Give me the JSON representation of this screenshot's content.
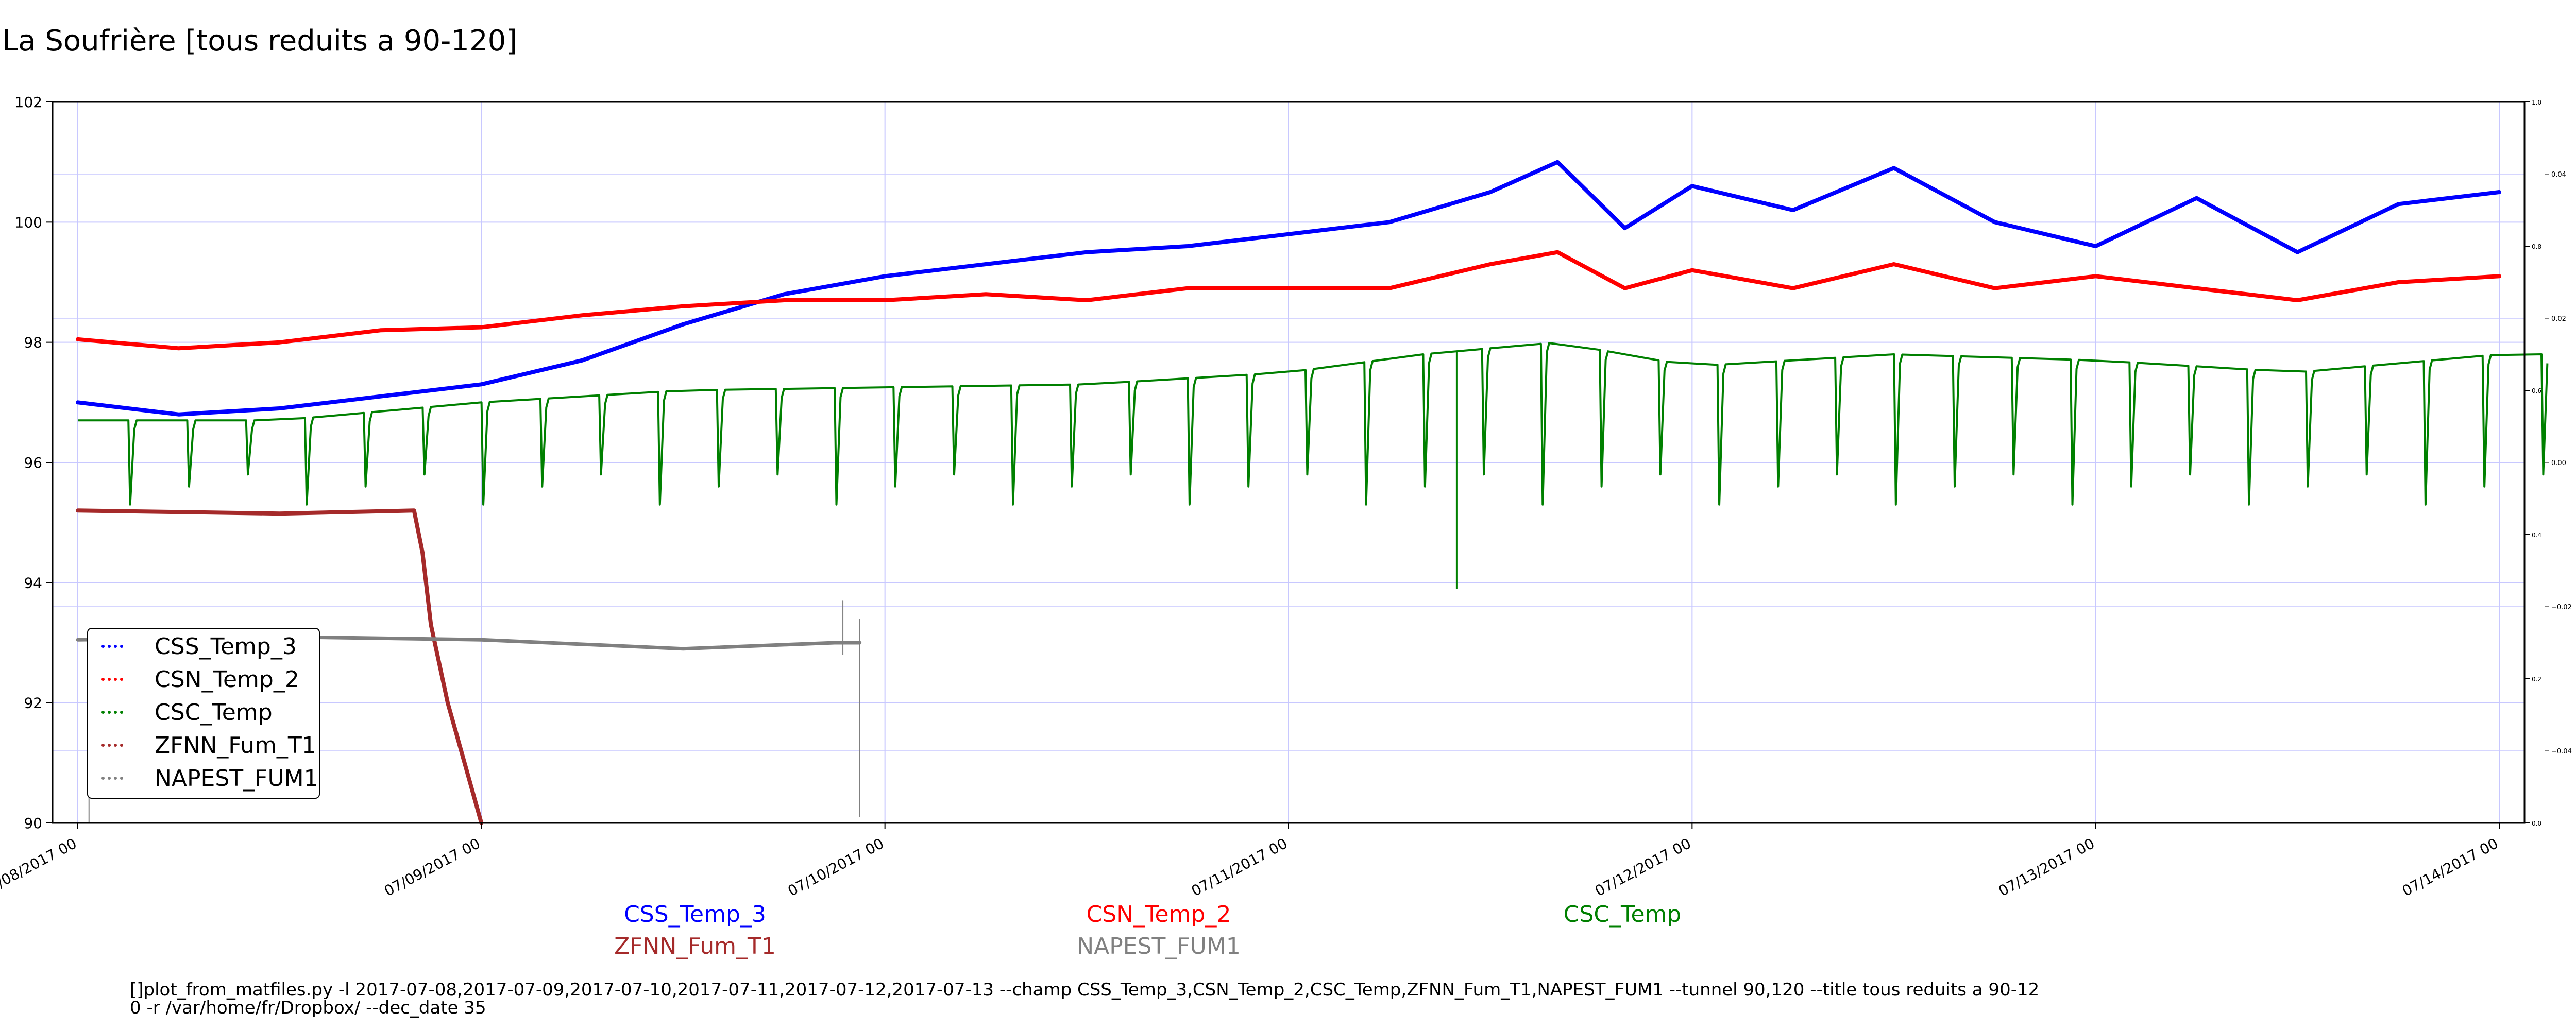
{
  "title": "La Soufrière [tous reduits a 90-120]",
  "chart_data": {
    "type": "scatter",
    "x_axis": {
      "type": "date",
      "range": [
        "2017-07-07 22:30",
        "2017-07-14 01:30"
      ],
      "tick_dates": [
        "2017-07-08 00:00",
        "2017-07-09 00:00",
        "2017-07-10 00:00",
        "2017-07-11 00:00",
        "2017-07-12 00:00",
        "2017-07-13 00:00",
        "2017-07-14 00:00"
      ],
      "tick_labels": [
        "07/08/2017 00",
        "07/09/2017 00",
        "07/10/2017 00",
        "07/11/2017 00",
        "07/12/2017 00",
        "07/13/2017 00",
        "07/14/2017 00"
      ]
    },
    "y_axis": {
      "range": [
        90,
        102
      ],
      "tick_labels": [
        "90",
        "92",
        "94",
        "96",
        "98",
        "100",
        "102"
      ]
    },
    "right_axis_outer": {
      "range": [
        0.0,
        1.0
      ],
      "tick_labels": [
        "0.0",
        "0.2",
        "0.4",
        "0.6",
        "0.8",
        "1.0"
      ]
    },
    "right_axis_inner": {
      "tick_values": [
        -0.04,
        -0.02,
        0.0,
        0.02,
        0.04
      ],
      "tick_labels": [
        "−0.04",
        "−0.02",
        "0.00",
        "0.02",
        "0.04"
      ]
    },
    "grid": true,
    "legend": {
      "position": "lower-left",
      "entries": [
        "CSS_Temp_3",
        "CSN_Temp_2",
        "CSC_Temp",
        "ZFNN_Fum_T1",
        "NAPEST_FUM1"
      ]
    },
    "series": [
      {
        "name": "CSS_Temp_3",
        "color": "#0000ff",
        "points": [
          [
            "2017-07-08 00:00",
            97.0
          ],
          [
            "2017-07-08 06:00",
            96.8
          ],
          [
            "2017-07-08 12:00",
            96.9
          ],
          [
            "2017-07-08 18:00",
            97.1
          ],
          [
            "2017-07-09 00:00",
            97.3
          ],
          [
            "2017-07-09 06:00",
            97.7
          ],
          [
            "2017-07-09 12:00",
            98.3
          ],
          [
            "2017-07-09 18:00",
            98.8
          ],
          [
            "2017-07-10 00:00",
            99.1
          ],
          [
            "2017-07-10 06:00",
            99.3
          ],
          [
            "2017-07-10 12:00",
            99.5
          ],
          [
            "2017-07-10 18:00",
            99.6
          ],
          [
            "2017-07-11 00:00",
            99.8
          ],
          [
            "2017-07-11 06:00",
            100.0
          ],
          [
            "2017-07-11 12:00",
            100.5
          ],
          [
            "2017-07-11 16:00",
            101.0
          ],
          [
            "2017-07-11 20:00",
            99.9
          ],
          [
            "2017-07-12 00:00",
            100.6
          ],
          [
            "2017-07-12 06:00",
            100.2
          ],
          [
            "2017-07-12 12:00",
            100.9
          ],
          [
            "2017-07-12 18:00",
            100.0
          ],
          [
            "2017-07-13 00:00",
            99.6
          ],
          [
            "2017-07-13 06:00",
            100.4
          ],
          [
            "2017-07-13 12:00",
            99.5
          ],
          [
            "2017-07-13 18:00",
            100.3
          ],
          [
            "2017-07-14 00:00",
            100.5
          ]
        ]
      },
      {
        "name": "CSN_Temp_2",
        "color": "#ff0000",
        "points": [
          [
            "2017-07-08 00:00",
            98.05
          ],
          [
            "2017-07-08 06:00",
            97.9
          ],
          [
            "2017-07-08 12:00",
            98.0
          ],
          [
            "2017-07-08 18:00",
            98.2
          ],
          [
            "2017-07-09 00:00",
            98.25
          ],
          [
            "2017-07-09 06:00",
            98.45
          ],
          [
            "2017-07-09 12:00",
            98.6
          ],
          [
            "2017-07-09 18:00",
            98.7
          ],
          [
            "2017-07-10 00:00",
            98.7
          ],
          [
            "2017-07-10 06:00",
            98.8
          ],
          [
            "2017-07-10 12:00",
            98.7
          ],
          [
            "2017-07-10 18:00",
            98.9
          ],
          [
            "2017-07-11 00:00",
            98.9
          ],
          [
            "2017-07-11 06:00",
            98.9
          ],
          [
            "2017-07-11 12:00",
            99.3
          ],
          [
            "2017-07-11 16:00",
            99.5
          ],
          [
            "2017-07-11 20:00",
            98.9
          ],
          [
            "2017-07-12 00:00",
            99.2
          ],
          [
            "2017-07-12 06:00",
            98.9
          ],
          [
            "2017-07-12 12:00",
            99.3
          ],
          [
            "2017-07-12 18:00",
            98.9
          ],
          [
            "2017-07-13 00:00",
            99.1
          ],
          [
            "2017-07-13 06:00",
            98.9
          ],
          [
            "2017-07-13 12:00",
            98.7
          ],
          [
            "2017-07-13 18:00",
            99.0
          ],
          [
            "2017-07-14 00:00",
            99.1
          ]
        ]
      },
      {
        "name": "CSC_Temp",
        "color": "#008000",
        "baseline": [
          [
            "2017-07-08 00:00",
            96.7
          ],
          [
            "2017-07-08 12:00",
            96.7
          ],
          [
            "2017-07-09 00:00",
            97.0
          ],
          [
            "2017-07-09 12:00",
            97.2
          ],
          [
            "2017-07-10 00:00",
            97.25
          ],
          [
            "2017-07-10 12:00",
            97.3
          ],
          [
            "2017-07-11 00:00",
            97.5
          ],
          [
            "2017-07-11 08:00",
            97.8
          ],
          [
            "2017-07-11 16:00",
            98.0
          ],
          [
            "2017-07-11 20:00",
            97.8
          ],
          [
            "2017-07-12 00:00",
            97.6
          ],
          [
            "2017-07-12 12:00",
            97.8
          ],
          [
            "2017-07-13 00:00",
            97.7
          ],
          [
            "2017-07-13 12:00",
            97.5
          ],
          [
            "2017-07-14 00:00",
            97.8
          ]
        ],
        "dip_interval_hours": 3.5,
        "dip_min_values": [
          95.3,
          95.6,
          95.8
        ],
        "lowest_value": 93.9
      },
      {
        "name": "ZFNN_Fum_T1",
        "color": "#a52a2a",
        "points": [
          [
            "2017-07-08 00:00",
            95.2
          ],
          [
            "2017-07-08 12:00",
            95.15
          ],
          [
            "2017-07-08 20:00",
            95.2
          ],
          [
            "2017-07-08 20:30",
            94.5
          ],
          [
            "2017-07-08 21:00",
            93.3
          ],
          [
            "2017-07-08 22:00",
            92.0
          ],
          [
            "2017-07-08 23:00",
            91.0
          ],
          [
            "2017-07-09 00:00",
            90.0
          ]
        ]
      },
      {
        "name": "NAPEST_FUM1",
        "color": "#808080",
        "points": [
          [
            "2017-07-08 00:00",
            93.05
          ],
          [
            "2017-07-08 12:00",
            93.1
          ],
          [
            "2017-07-09 00:00",
            93.05
          ],
          [
            "2017-07-09 12:00",
            92.9
          ],
          [
            "2017-07-09 21:00",
            93.0
          ],
          [
            "2017-07-09 22:30",
            93.0
          ]
        ]
      }
    ]
  },
  "subtitles": [
    {
      "text": "CSS_Temp_3",
      "color": "#0000ff"
    },
    {
      "text": "CSN_Temp_2",
      "color": "#ff0000"
    },
    {
      "text": "CSC_Temp",
      "color": "#008000"
    },
    {
      "text": "ZFNN_Fum_T1",
      "color": "#a52a2a"
    },
    {
      "text": "NAPEST_FUM1",
      "color": "#808080"
    }
  ],
  "command": {
    "line1": "[]plot_from_matfiles.py -l 2017-07-08,2017-07-09,2017-07-10,2017-07-11,2017-07-12,2017-07-13 --champ CSS_Temp_3,CSN_Temp_2,CSC_Temp,ZFNN_Fum_T1,NAPEST_FUM1 --tunnel 90,120 --title tous reduits a 90-12",
    "line2": "0 -r /var/home/fr/Dropbox/ --dec_date 35"
  }
}
